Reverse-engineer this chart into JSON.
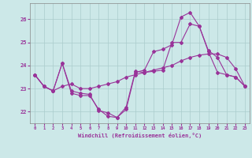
{
  "xlabel": "Windchill (Refroidissement éolien,°C)",
  "ylabel": "",
  "bg_color": "#cce8e8",
  "grid_color": "#aacccc",
  "line_color": "#993399",
  "xlim": [
    -0.5,
    23.5
  ],
  "ylim": [
    21.5,
    26.7
  ],
  "xticks": [
    0,
    1,
    2,
    3,
    4,
    5,
    6,
    7,
    8,
    9,
    10,
    11,
    12,
    13,
    14,
    15,
    16,
    17,
    18,
    19,
    20,
    21,
    22,
    23
  ],
  "yticks": [
    22,
    23,
    24,
    25,
    26
  ],
  "line1": [
    23.6,
    23.1,
    22.9,
    24.1,
    22.8,
    22.7,
    22.7,
    22.1,
    21.8,
    21.75,
    22.1,
    23.7,
    23.8,
    24.6,
    24.7,
    24.9,
    26.1,
    26.3,
    25.7,
    24.6,
    23.7,
    23.6,
    23.5,
    23.1
  ],
  "line2": [
    23.6,
    23.1,
    22.9,
    24.1,
    22.9,
    22.8,
    22.75,
    22.05,
    21.95,
    21.75,
    22.2,
    23.75,
    23.7,
    23.75,
    23.8,
    25.0,
    25.0,
    25.8,
    25.7,
    24.65,
    24.35,
    23.6,
    23.5,
    23.1
  ],
  "line3": [
    23.6,
    23.1,
    22.9,
    23.1,
    23.2,
    23.0,
    23.0,
    23.1,
    23.2,
    23.3,
    23.5,
    23.6,
    23.7,
    23.8,
    23.9,
    24.0,
    24.2,
    24.35,
    24.45,
    24.5,
    24.5,
    24.35,
    23.85,
    23.1
  ]
}
